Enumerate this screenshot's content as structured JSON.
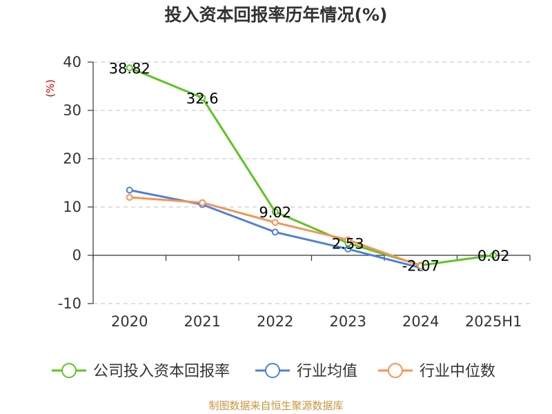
{
  "chart_data": {
    "type": "line",
    "title": "投入资本回报率历年情况(%)",
    "ylabel": "(%)",
    "xlabel": "",
    "categories": [
      "2020",
      "2021",
      "2022",
      "2023",
      "2024",
      "2025H1"
    ],
    "ylim": [
      -10,
      40
    ],
    "yticks": [
      40,
      30,
      20,
      10,
      0,
      -10
    ],
    "grid": true,
    "legend_position": "bottom",
    "series": [
      {
        "name": "公司投入资本回报率",
        "color": "#5cc520",
        "values": [
          38.82,
          32.6,
          9.02,
          2.53,
          -2.07,
          0.02
        ],
        "labels": [
          "38.82",
          "32.6",
          "9.02",
          "2.53",
          "-2.07",
          "0.02"
        ]
      },
      {
        "name": "行业均值",
        "color": "#4d7fdc",
        "values": [
          13.5,
          10.5,
          4.8,
          1.3,
          -2.6,
          null
        ]
      },
      {
        "name": "行业中位数",
        "color": "#f59355",
        "values": [
          12.0,
          10.9,
          6.8,
          3.2,
          -2.2,
          null
        ]
      }
    ]
  },
  "colors": {
    "ylabel": "#cc0000",
    "source": "#c8963e"
  },
  "source": "制图数据来自恒生聚源数据库"
}
